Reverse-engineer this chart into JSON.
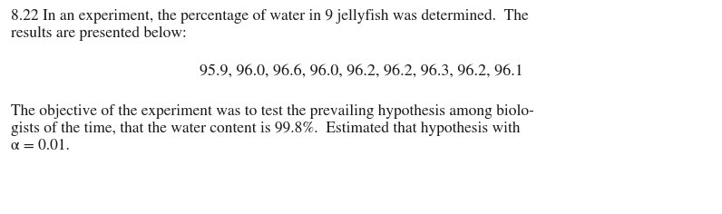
{
  "background_color": "#ffffff",
  "text_color": "#1a1a1a",
  "line1": "8.22 In an experiment, the percentage of water in 9 jellyfish was determined.  The",
  "line2": "results are presented below:",
  "data_line": "95.9, 96.0, 96.6, 96.0, 96.2, 96.2, 96.3, 96.2, 96.1",
  "para2_line1": "The objective of the experiment was to test the prevailing hypothesis among biolo-",
  "para2_line2": "gists of the time, that the water content is 99.8%.  Estimated that hypothesis with",
  "para2_line3": "α = 0.01.",
  "font_family": "STIXGeneral",
  "font_size": 12.5,
  "data_font_size": 13.0,
  "fig_width": 7.96,
  "fig_height": 2.36,
  "dpi": 100
}
